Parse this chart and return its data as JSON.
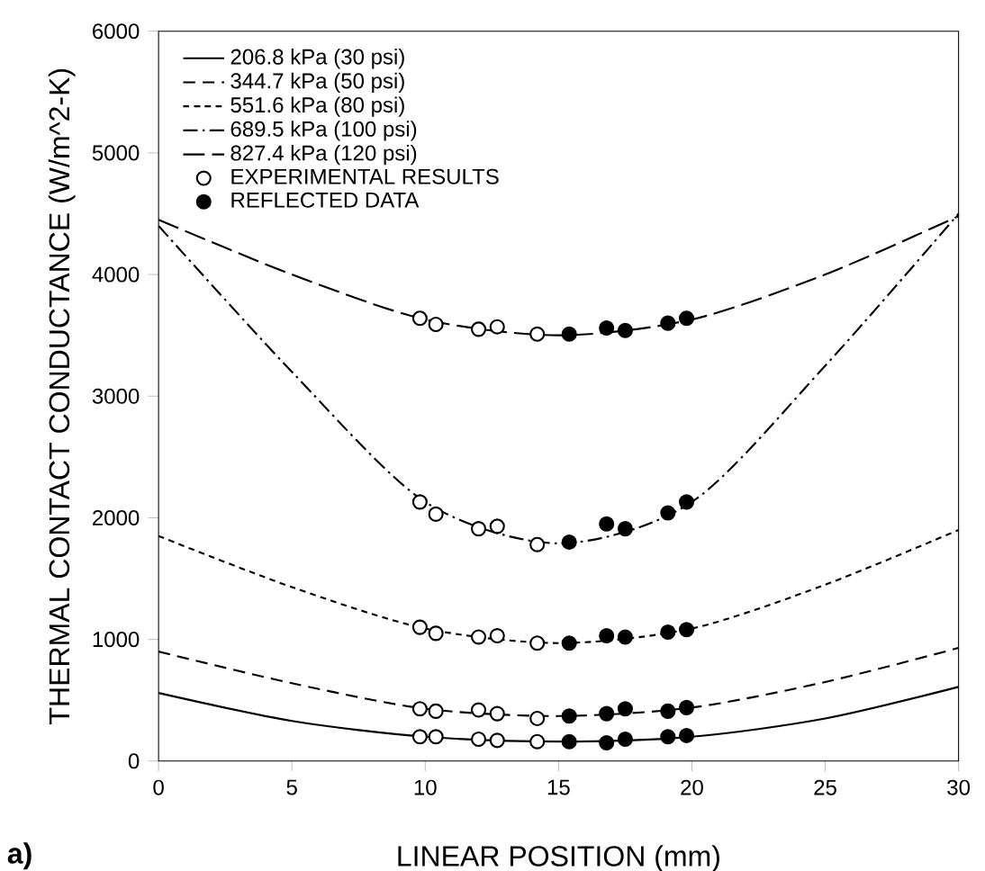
{
  "chart_data": {
    "type": "line",
    "xlabel": "LINEAR POSITION (mm)",
    "ylabel": "THERMAL CONTACT CONDUCTANCE (W/m^2-K)",
    "xlim": [
      0,
      30
    ],
    "ylim": [
      0,
      6000
    ],
    "xticks": [
      0,
      5,
      10,
      15,
      20,
      25,
      30
    ],
    "yticks": [
      0,
      1000,
      2000,
      3000,
      4000,
      5000,
      6000
    ],
    "legend": "top left",
    "annotations": [
      "a)"
    ],
    "series": [
      {
        "name": "206.8 kPa (30 psi)",
        "color": "#000000",
        "line_style": "solid",
        "marker": "none",
        "x": [
          0,
          5,
          10,
          15,
          20,
          25,
          30
        ],
        "values": [
          560,
          330,
          200,
          160,
          200,
          350,
          610
        ]
      },
      {
        "name": "344.7 kPa (50 psi)",
        "color": "#000000",
        "line_style": "dashed",
        "marker": "none",
        "x": [
          0,
          5,
          10,
          15,
          20,
          25,
          30
        ],
        "values": [
          900,
          640,
          430,
          370,
          440,
          650,
          930
        ]
      },
      {
        "name": "551.6 kPa (80 psi)",
        "color": "#000000",
        "line_style": "dotted",
        "marker": "none",
        "x": [
          0,
          5,
          10,
          15,
          20,
          25,
          30
        ],
        "values": [
          1850,
          1430,
          1090,
          970,
          1090,
          1450,
          1900
        ]
      },
      {
        "name": "689.5 kPa (100 psi)",
        "color": "#000000",
        "line_style": "dashdot",
        "marker": "none",
        "x": [
          0,
          5,
          10,
          15,
          20,
          25,
          30
        ],
        "values": [
          4400,
          3200,
          2130,
          1790,
          2130,
          3250,
          4500
        ]
      },
      {
        "name": "827.4 kPa (120 psi)",
        "color": "#000000",
        "line_style": "longdashed",
        "marker": "none",
        "x": [
          0,
          5,
          10,
          15,
          20,
          25,
          30
        ],
        "values": [
          4450,
          4000,
          3630,
          3500,
          3630,
          4000,
          4480
        ]
      },
      {
        "name": "EXPERIMENTAL RESULTS",
        "type": "scatter",
        "marker": "circle",
        "color": "#ffffff",
        "x": [
          9.8,
          10.4,
          12.0,
          12.7,
          14.2,
          9.8,
          10.4,
          12.0,
          12.7,
          14.2,
          9.8,
          10.4,
          12.0,
          12.7,
          14.2,
          9.8,
          10.4,
          12.0,
          12.7,
          14.2,
          9.8,
          10.4,
          12.0,
          12.7,
          14.2
        ],
        "values": [
          200,
          200,
          180,
          170,
          160,
          430,
          410,
          420,
          390,
          350,
          1100,
          1050,
          1020,
          1030,
          970,
          2130,
          2030,
          1910,
          1930,
          1780,
          3640,
          3590,
          3550,
          3570,
          3510
        ]
      },
      {
        "name": "REFLECTED DATA",
        "type": "scatter",
        "marker": "circle",
        "color": "#000000",
        "x": [
          15.4,
          16.8,
          17.5,
          19.1,
          19.8,
          15.4,
          16.8,
          17.5,
          19.1,
          19.8,
          15.4,
          16.8,
          17.5,
          19.1,
          19.8,
          15.4,
          16.8,
          17.5,
          19.1,
          19.8,
          15.4,
          16.8,
          17.5,
          19.1,
          19.8
        ],
        "values": [
          160,
          150,
          180,
          200,
          210,
          370,
          390,
          430,
          410,
          440,
          970,
          1030,
          1020,
          1060,
          1080,
          1800,
          1950,
          1910,
          2040,
          2130,
          3510,
          3560,
          3540,
          3600,
          3640
        ]
      }
    ]
  }
}
